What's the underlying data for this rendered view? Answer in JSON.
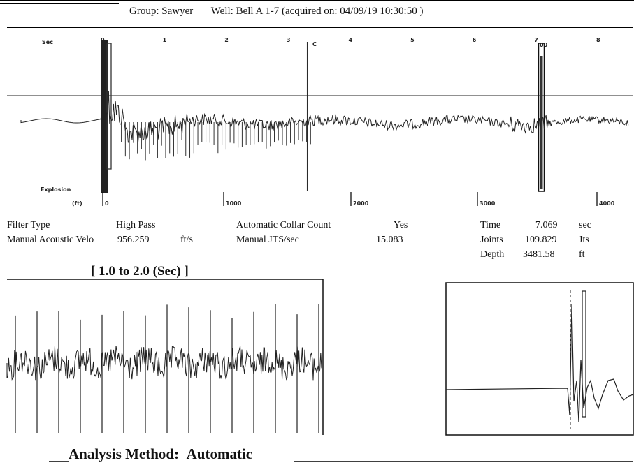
{
  "header": {
    "group": "Group: Sawyer",
    "well": "Well: Bell A 1-7 (acquired on: 04/09/19 10:30:50 )"
  },
  "main_chart": {
    "time_axis_label": "Sec",
    "depth_axis_label": "(ft)",
    "explosion_label": "Explosion",
    "time_ticks": [
      "0",
      "1",
      "2",
      "3",
      "4",
      "5",
      "6",
      "7",
      "8"
    ],
    "depth_ticks": [
      "0",
      "1000",
      "2000",
      "3000",
      "4000"
    ],
    "cursor_label": "C",
    "end_label": "00"
  },
  "params": {
    "filter_type_label": "Filter Type",
    "filter_type_value": "High Pass",
    "velocity_label": "Manual Acoustic Velo",
    "velocity_value": "956.259",
    "velocity_unit": "ft/s",
    "collar_label": "Automatic Collar Count",
    "collar_value": "Yes",
    "jts_label": "Manual JTS/sec",
    "jts_value": "15.083",
    "time_label": "Time",
    "time_value": "7.069",
    "time_unit": "sec",
    "joints_label": "Joints",
    "joints_value": "109.829",
    "joints_unit": "Jts",
    "depth_label": "Depth",
    "depth_value": "3481.58",
    "depth_unit": "ft"
  },
  "zoom_chart": {
    "title": "[ 1.0  to  2.0 (Sec) ]"
  },
  "footer": {
    "label": "Analysis Method:",
    "value": "Automatic"
  },
  "chart_data": [
    {
      "type": "line",
      "x_unit": "sec",
      "xlim": [
        0,
        8
      ],
      "depth_ticks_ft": [
        0,
        1000,
        2000,
        3000,
        4000
      ],
      "time_ticks_sec": [
        0,
        1,
        2,
        3,
        4,
        5,
        6,
        7,
        8
      ],
      "cursor_time_sec": 7.069
    },
    {
      "type": "line",
      "title": "[ 1.0  to  2.0 (Sec) ]",
      "xlim": [
        1.0,
        2.0
      ]
    },
    {
      "type": "line"
    }
  ]
}
